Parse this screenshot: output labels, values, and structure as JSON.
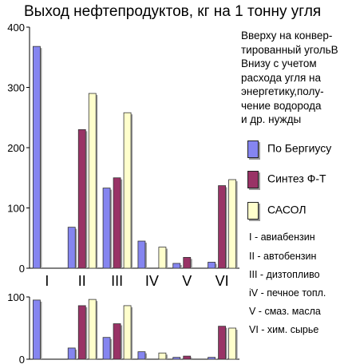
{
  "chart_data": [
    {
      "type": "bar",
      "title": "Выход нефтепродуктов, кг на 1 тонну угля",
      "categories": [
        "I",
        "II",
        "III",
        "IV",
        "V",
        "VI"
      ],
      "series": [
        {
          "name": "По Бергиусу",
          "values": [
            368,
            68,
            133,
            45,
            8,
            10
          ]
        },
        {
          "name": "Синтез Ф-Т",
          "values": [
            0,
            230,
            150,
            0,
            18,
            137
          ]
        },
        {
          "name": "САСОЛ",
          "values": [
            0,
            290,
            258,
            35,
            0,
            147
          ]
        }
      ],
      "ylim": [
        0,
        400
      ],
      "yticks": [
        "0",
        "100",
        "200",
        "300",
        "400"
      ],
      "note": "Вверху на конвер-тированный угольВнизу с учетом расхода угля на энергетику,полу-чение водорода и др. нужды"
    },
    {
      "type": "bar",
      "categories": [
        "I",
        "II",
        "III",
        "IV",
        "V",
        "VI"
      ],
      "series": [
        {
          "name": "По Бергиусу",
          "values": [
            95,
            18,
            35,
            12,
            3,
            3
          ]
        },
        {
          "name": "Синтез Ф-Т",
          "values": [
            0,
            86,
            57,
            0,
            5,
            53
          ]
        },
        {
          "name": "САСОЛ",
          "values": [
            0,
            96,
            86,
            10,
            0,
            50
          ]
        }
      ],
      "ylim": [
        0,
        100
      ],
      "yticks": [
        "0",
        "100"
      ]
    }
  ],
  "title": "Выход нефтепродуктов, кг на 1 тонну угля",
  "note_lines": [
    "Вверху на конвер-",
    "тированный угольВ",
    "Внизу с учетом",
    "расхода угля на",
    "энергетику,полу-",
    "чение водорода",
    "и др. нужды"
  ],
  "legend": [
    {
      "label": "По Бергиусу",
      "color": "#8585f0"
    },
    {
      "label": "Синтез Ф-Т",
      "color": "#993366"
    },
    {
      "label": "САСОЛ",
      "color": "#ffffcc"
    }
  ],
  "glossary": [
    "I  - авиабензин",
    "II  - автобензин",
    "III - дизтопливо",
    "iV - печное топл.",
    "V  - смаз. масла",
    "VI - хим. сырье"
  ]
}
